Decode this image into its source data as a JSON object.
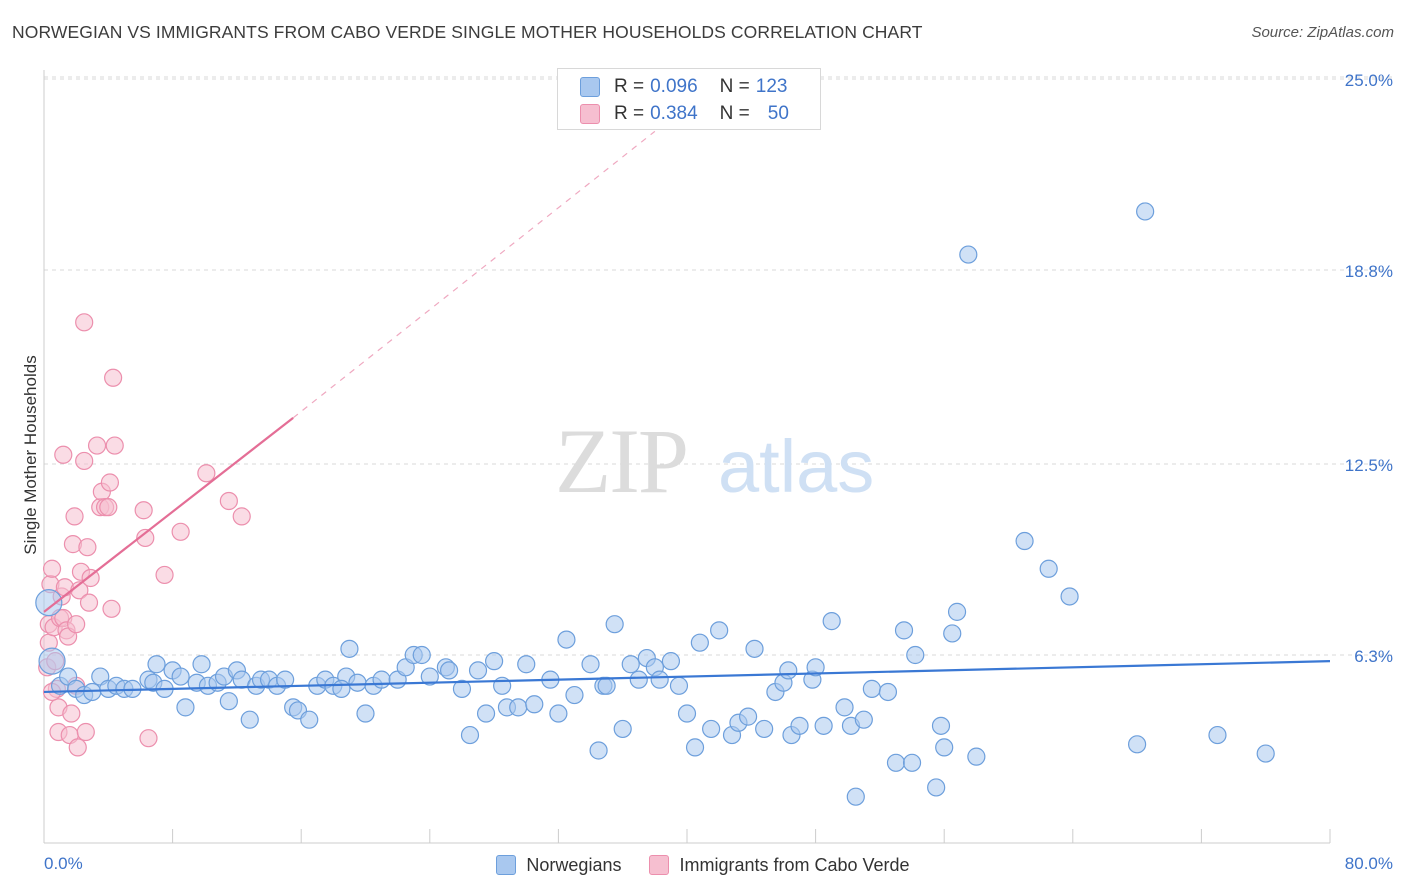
{
  "title": "NORWEGIAN VS IMMIGRANTS FROM CABO VERDE SINGLE MOTHER HOUSEHOLDS CORRELATION CHART",
  "source": "Source: ZipAtlas.com",
  "watermark": {
    "zip": "ZIP",
    "atlas": "atlas"
  },
  "legend_top": {
    "rows": [
      {
        "r_label": "R =",
        "r_value": "0.096",
        "n_label": "N =",
        "n_value": "123"
      },
      {
        "r_label": "R =",
        "r_value": "0.384",
        "n_label": "N =",
        "n_value": "50"
      }
    ]
  },
  "legend_bottom": {
    "items": [
      "Norwegians",
      "Immigrants from Cabo Verde"
    ]
  },
  "colors": {
    "blue_fill": "#a9c8ef",
    "blue_stroke": "#6d9fdc",
    "blue_line": "#3a78d4",
    "pink_fill": "#f6bfd0",
    "pink_stroke": "#ec8fad",
    "pink_line": "#e46e96",
    "axis_text": "#3f74c9",
    "grid": "#d8d8d8"
  },
  "chart_data": {
    "type": "scatter",
    "title": "NORWEGIAN VS IMMIGRANTS FROM CABO VERDE SINGLE MOTHER HOUSEHOLDS CORRELATION CHART",
    "xlabel": "",
    "ylabel": "Single Mother Households",
    "xlim": [
      0,
      80
    ],
    "ylim": [
      0,
      26.5
    ],
    "x_tick_labels": [
      "0.0%",
      "80.0%"
    ],
    "y_ticks": [
      6.3,
      12.5,
      18.8,
      25.0
    ],
    "y_tick_labels": [
      "6.3%",
      "12.5%",
      "18.8%",
      "25.0%"
    ],
    "grid": "horizontal dashed",
    "legend_position": "top-center",
    "series": [
      {
        "name": "Norwegians",
        "r": 0.096,
        "n": 123,
        "trend": {
          "x0": 0,
          "y0": 5.1,
          "x1": 80,
          "y1": 6.1,
          "dashed_extension": false
        },
        "points": [
          [
            0.3,
            8.0
          ],
          [
            0.5,
            6.1
          ],
          [
            1.0,
            5.3
          ],
          [
            1.5,
            5.6
          ],
          [
            2.0,
            5.2
          ],
          [
            2.5,
            5.0
          ],
          [
            3.0,
            5.1
          ],
          [
            3.5,
            5.6
          ],
          [
            4.0,
            5.2
          ],
          [
            4.5,
            5.3
          ],
          [
            5.0,
            5.2
          ],
          [
            5.5,
            5.2
          ],
          [
            6.5,
            5.5
          ],
          [
            6.8,
            5.4
          ],
          [
            7.0,
            6.0
          ],
          [
            7.5,
            5.2
          ],
          [
            8.0,
            5.8
          ],
          [
            8.5,
            5.6
          ],
          [
            8.8,
            4.6
          ],
          [
            9.5,
            5.4
          ],
          [
            9.8,
            6.0
          ],
          [
            10.2,
            5.3
          ],
          [
            10.8,
            5.4
          ],
          [
            11.2,
            5.6
          ],
          [
            11.5,
            4.8
          ],
          [
            12.0,
            5.8
          ],
          [
            12.3,
            5.5
          ],
          [
            12.8,
            4.2
          ],
          [
            13.2,
            5.3
          ],
          [
            13.5,
            5.5
          ],
          [
            14.0,
            5.5
          ],
          [
            14.5,
            5.3
          ],
          [
            15.0,
            5.5
          ],
          [
            15.5,
            4.6
          ],
          [
            15.8,
            4.5
          ],
          [
            16.5,
            4.2
          ],
          [
            17.0,
            5.3
          ],
          [
            17.5,
            5.5
          ],
          [
            18.0,
            5.3
          ],
          [
            18.8,
            5.6
          ],
          [
            18.5,
            5.2
          ],
          [
            19.0,
            6.5
          ],
          [
            19.5,
            5.4
          ],
          [
            20.0,
            4.4
          ],
          [
            20.5,
            5.3
          ],
          [
            21.0,
            5.5
          ],
          [
            22.0,
            5.5
          ],
          [
            22.5,
            5.9
          ],
          [
            23.0,
            6.3
          ],
          [
            23.5,
            6.3
          ],
          [
            24.0,
            5.6
          ],
          [
            25.0,
            5.9
          ],
          [
            25.2,
            5.8
          ],
          [
            26.0,
            5.2
          ],
          [
            26.5,
            3.7
          ],
          [
            27.0,
            5.8
          ],
          [
            27.5,
            4.4
          ],
          [
            28.0,
            6.1
          ],
          [
            28.5,
            5.3
          ],
          [
            28.8,
            4.6
          ],
          [
            29.5,
            4.6
          ],
          [
            30.0,
            6.0
          ],
          [
            30.5,
            4.7
          ],
          [
            31.5,
            5.5
          ],
          [
            32.0,
            4.4
          ],
          [
            32.5,
            6.8
          ],
          [
            33.0,
            5.0
          ],
          [
            34.0,
            6.0
          ],
          [
            34.5,
            3.2
          ],
          [
            34.8,
            5.3
          ],
          [
            35.0,
            5.3
          ],
          [
            35.5,
            7.3
          ],
          [
            36.0,
            3.9
          ],
          [
            36.5,
            6.0
          ],
          [
            37.0,
            5.5
          ],
          [
            37.5,
            6.2
          ],
          [
            38.0,
            5.9
          ],
          [
            38.3,
            5.5
          ],
          [
            39.0,
            6.1
          ],
          [
            39.5,
            5.3
          ],
          [
            40.0,
            4.4
          ],
          [
            40.5,
            3.3
          ],
          [
            40.8,
            6.7
          ],
          [
            41.5,
            3.9
          ],
          [
            42.0,
            7.1
          ],
          [
            42.8,
            3.7
          ],
          [
            43.2,
            4.1
          ],
          [
            43.8,
            4.3
          ],
          [
            44.2,
            6.5
          ],
          [
            44.8,
            3.9
          ],
          [
            45.5,
            5.1
          ],
          [
            46.0,
            5.4
          ],
          [
            46.3,
            5.8
          ],
          [
            46.5,
            3.7
          ],
          [
            47.0,
            4.0
          ],
          [
            47.8,
            5.5
          ],
          [
            48.0,
            5.9
          ],
          [
            48.5,
            4.0
          ],
          [
            49.0,
            7.4
          ],
          [
            49.8,
            4.6
          ],
          [
            50.2,
            4.0
          ],
          [
            50.5,
            1.7
          ],
          [
            51.0,
            4.2
          ],
          [
            51.5,
            5.2
          ],
          [
            52.5,
            5.1
          ],
          [
            53.0,
            2.8
          ],
          [
            53.5,
            7.1
          ],
          [
            54.0,
            2.8
          ],
          [
            54.2,
            6.3
          ],
          [
            55.5,
            2.0
          ],
          [
            55.8,
            4.0
          ],
          [
            56.0,
            3.3
          ],
          [
            56.5,
            7.0
          ],
          [
            56.8,
            7.7
          ],
          [
            58.0,
            3.0
          ],
          [
            61.0,
            10.0
          ],
          [
            62.5,
            9.1
          ],
          [
            63.8,
            8.2
          ],
          [
            68.0,
            3.4
          ],
          [
            68.5,
            20.7
          ],
          [
            73.0,
            3.7
          ],
          [
            76.0,
            3.1
          ],
          [
            57.5,
            19.3
          ]
        ]
      },
      {
        "name": "Immigrants from Cabo Verde",
        "r": 0.384,
        "n": 50,
        "trend": {
          "x0": 0,
          "y0": 7.7,
          "x1": 15.5,
          "y1": 14.0,
          "dashed_extension": true,
          "dash_to_x": 38,
          "dash_to_y": 23.3
        },
        "points": [
          [
            0.2,
            5.9
          ],
          [
            0.3,
            7.3
          ],
          [
            0.3,
            6.7
          ],
          [
            0.4,
            8.6
          ],
          [
            0.5,
            9.1
          ],
          [
            0.6,
            7.2
          ],
          [
            0.7,
            6.1
          ],
          [
            0.8,
            5.2
          ],
          [
            0.9,
            4.6
          ],
          [
            0.9,
            3.8
          ],
          [
            1.0,
            7.5
          ],
          [
            1.1,
            8.2
          ],
          [
            1.2,
            7.5
          ],
          [
            1.2,
            12.8
          ],
          [
            1.3,
            8.5
          ],
          [
            1.4,
            7.1
          ],
          [
            1.5,
            6.9
          ],
          [
            1.6,
            3.7
          ],
          [
            1.7,
            4.4
          ],
          [
            1.8,
            9.9
          ],
          [
            1.9,
            10.8
          ],
          [
            2.0,
            7.3
          ],
          [
            2.1,
            3.3
          ],
          [
            2.2,
            8.4
          ],
          [
            2.3,
            9.0
          ],
          [
            2.5,
            17.1
          ],
          [
            2.5,
            12.6
          ],
          [
            2.6,
            3.8
          ],
          [
            2.7,
            9.8
          ],
          [
            2.8,
            8.0
          ],
          [
            2.9,
            8.8
          ],
          [
            3.3,
            13.1
          ],
          [
            3.5,
            11.1
          ],
          [
            3.6,
            11.6
          ],
          [
            3.8,
            11.1
          ],
          [
            4.0,
            11.1
          ],
          [
            4.1,
            11.9
          ],
          [
            4.2,
            7.8
          ],
          [
            4.3,
            15.3
          ],
          [
            4.4,
            13.1
          ],
          [
            6.2,
            11.0
          ],
          [
            6.3,
            10.1
          ],
          [
            6.5,
            3.6
          ],
          [
            7.5,
            8.9
          ],
          [
            8.5,
            10.3
          ],
          [
            10.1,
            12.2
          ],
          [
            11.5,
            11.3
          ],
          [
            12.3,
            10.8
          ],
          [
            0.5,
            5.1
          ],
          [
            2.0,
            5.3
          ]
        ]
      }
    ]
  }
}
